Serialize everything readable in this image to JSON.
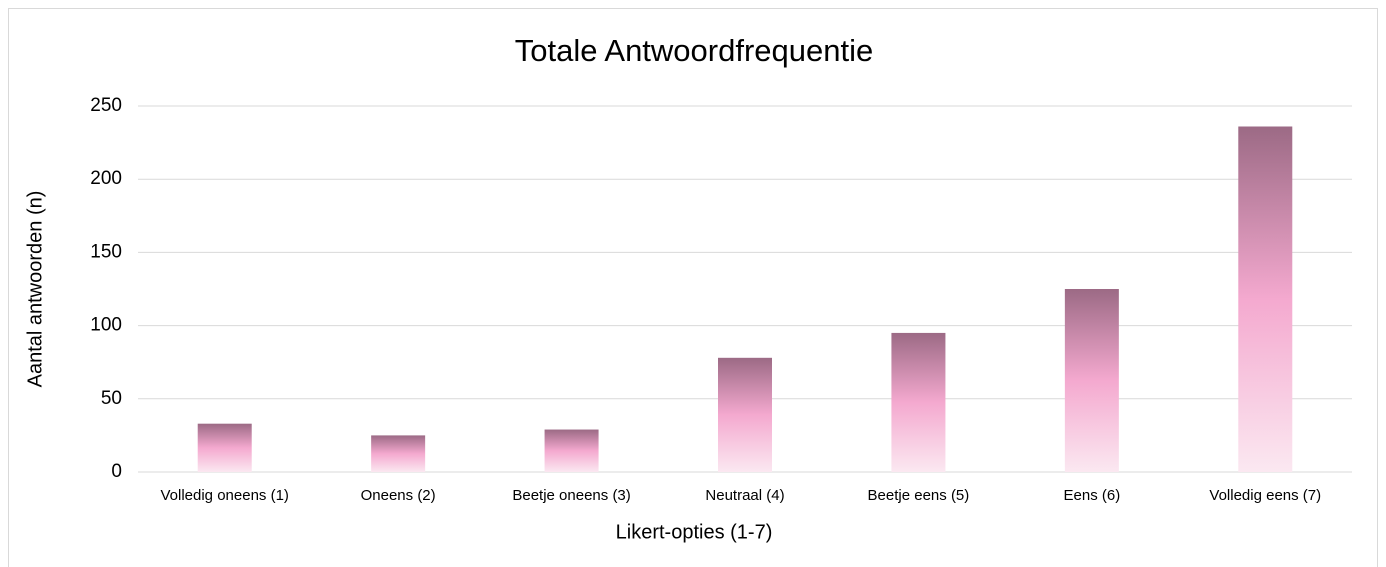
{
  "chart_data": {
    "type": "bar",
    "title": "Totale Antwoordfrequentie",
    "x_label": "Likert-opties (1-7)",
    "y_label": "Aantal antwoorden (n)",
    "categories": [
      "Volledig oneens (1)",
      "Oneens (2)",
      "Beetje oneens (3)",
      "Neutraal (4)",
      "Beetje eens (5)",
      "Eens (6)",
      "Volledig eens (7)"
    ],
    "values": [
      33,
      25,
      29,
      78,
      95,
      125,
      236
    ],
    "colors": [
      "#fbe8f1",
      "#f4a9cf",
      "#9c6a85"
    ],
    "ylim": [
      0,
      250
    ],
    "yticks": [
      0,
      50,
      100,
      150,
      200,
      250
    ],
    "grid": true
  }
}
